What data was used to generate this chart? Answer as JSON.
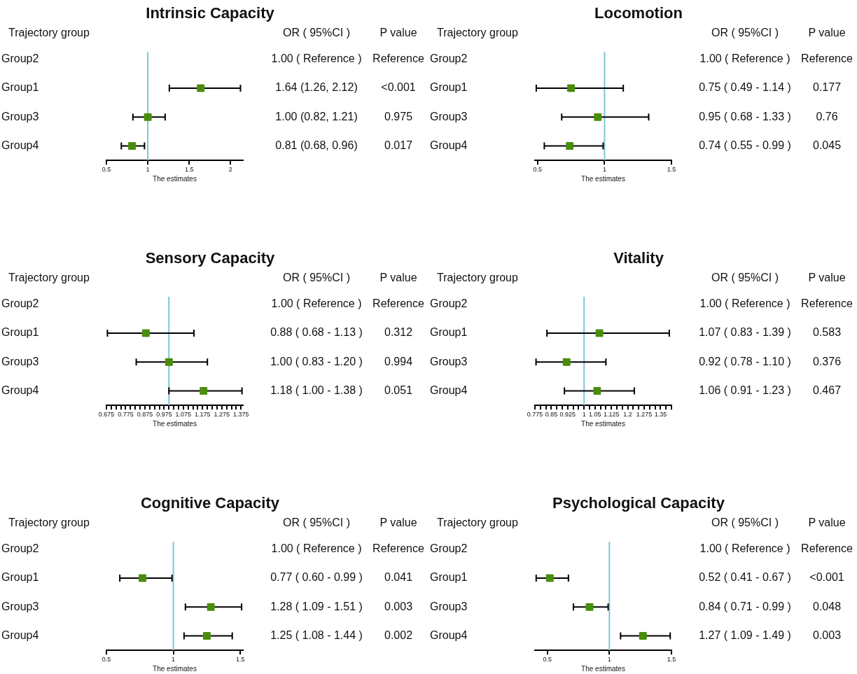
{
  "chart_data": [
    {
      "type": "scatter",
      "orientation": "horizontal",
      "title": "Intrinsic Capacity",
      "ylabel": "Trajectory group",
      "xlabel": "The estimates",
      "categories": [
        "Group2",
        "Group1",
        "Group3",
        "Group4"
      ],
      "values": [
        null,
        1.64,
        1.0,
        0.81
      ],
      "errors": [
        null,
        [
          1.26,
          2.12
        ],
        [
          0.82,
          1.21
        ],
        [
          0.68,
          0.96
        ]
      ],
      "color": "#4a8c0c",
      "marker": "square",
      "value_labels": [
        "1.00 ( Reference )",
        "1.64 (1.26, 2.12)",
        "1.00 (0.82, 1.21)",
        "0.81 (0.68, 0.96)"
      ],
      "annotations": [
        "OR ( 95%CI )",
        "P value",
        "Reference",
        "<0.001",
        "0.975",
        "0.017"
      ],
      "ref_lines": [
        {
          "axis": "x",
          "value": 1,
          "color": "#7cc8d2"
        }
      ],
      "xlim": [
        0.5,
        2.15
      ],
      "xticks": [
        0.5,
        1,
        1.5,
        2
      ]
    },
    {
      "type": "scatter",
      "orientation": "horizontal",
      "title": "Locomotion",
      "ylabel": "Trajectory group",
      "xlabel": "The estimates",
      "categories": [
        "Group2",
        "Group1",
        "Group3",
        "Group4"
      ],
      "values": [
        null,
        0.75,
        0.95,
        0.74
      ],
      "errors": [
        null,
        [
          0.49,
          1.14
        ],
        [
          0.68,
          1.33
        ],
        [
          0.55,
          0.99
        ]
      ],
      "color": "#4a8c0c",
      "marker": "square",
      "value_labels": [
        "1.00 ( Reference )",
        "0.75 ( 0.49 - 1.14 )",
        "0.95 ( 0.68 - 1.33 )",
        "0.74 ( 0.55 - 0.99 )"
      ],
      "annotations": [
        "OR ( 95%CI )",
        "P value",
        "Reference",
        "0.177",
        "0.76",
        "0.045"
      ],
      "ref_lines": [
        {
          "axis": "x",
          "value": 1,
          "color": "#7cc8d2"
        }
      ],
      "xlim": [
        0.48,
        1.5
      ],
      "xticks": [
        0.5,
        1,
        1.5
      ]
    },
    {
      "type": "scatter",
      "orientation": "horizontal",
      "title": "Sensory Capacity",
      "ylabel": "Trajectory group",
      "xlabel": "The estimates",
      "categories": [
        "Group2",
        "Group1",
        "Group3",
        "Group4"
      ],
      "values": [
        null,
        0.88,
        1.0,
        1.18
      ],
      "errors": [
        null,
        [
          0.68,
          1.13
        ],
        [
          0.83,
          1.2
        ],
        [
          1.0,
          1.38
        ]
      ],
      "color": "#4a8c0c",
      "marker": "square",
      "value_labels": [
        "1.00 ( Reference )",
        "0.88 ( 0.68 - 1.13 )",
        "1.00 ( 0.83 - 1.20 )",
        "1.18 ( 1.00 - 1.38 )"
      ],
      "annotations": [
        "OR ( 95%CI )",
        "P value",
        "Reference",
        "0.312",
        "0.994",
        "0.051"
      ],
      "ref_lines": [
        {
          "axis": "x",
          "value": 1,
          "color": "#7cc8d2"
        }
      ],
      "xlim": [
        0.675,
        1.385
      ],
      "xticks": [
        0.675,
        {
          "value": 0.7,
          "label": null
        },
        {
          "value": 0.725,
          "label": null
        },
        {
          "value": 0.75,
          "label": null
        },
        0.775,
        {
          "value": 0.8,
          "label": null
        },
        {
          "value": 0.825,
          "label": null
        },
        {
          "value": 0.85,
          "label": null
        },
        0.875,
        {
          "value": 0.9,
          "label": null
        },
        {
          "value": 0.925,
          "label": null
        },
        {
          "value": 0.95,
          "label": null
        },
        0.975,
        {
          "value": 1,
          "label": null
        },
        {
          "value": 1.025,
          "label": null
        },
        {
          "value": 1.05,
          "label": null
        },
        1.075,
        {
          "value": 1.1,
          "label": null
        },
        {
          "value": 1.125,
          "label": null
        },
        {
          "value": 1.15,
          "label": null
        },
        1.175,
        {
          "value": 1.2,
          "label": null
        },
        {
          "value": 1.225,
          "label": null
        },
        {
          "value": 1.25,
          "label": null
        },
        1.275,
        {
          "value": 1.3,
          "label": null
        },
        {
          "value": 1.325,
          "label": null
        },
        {
          "value": 1.35,
          "label": null
        },
        1.375
      ]
    },
    {
      "type": "scatter",
      "orientation": "horizontal",
      "title": "Vitality",
      "ylabel": "Trajectory group",
      "xlabel": "The estimates",
      "categories": [
        "Group2",
        "Group1",
        "Group3",
        "Group4"
      ],
      "values": [
        null,
        1.07,
        0.92,
        1.06
      ],
      "errors": [
        null,
        [
          0.83,
          1.39
        ],
        [
          0.78,
          1.1
        ],
        [
          0.91,
          1.23
        ]
      ],
      "color": "#4a8c0c",
      "marker": "square",
      "value_labels": [
        "1.00 ( Reference )",
        "1.07 ( 0.83 - 1.39 )",
        "0.92 ( 0.78 - 1.10 )",
        "1.06 ( 0.91 - 1.23 )"
      ],
      "annotations": [
        "OR ( 95%CI )",
        "P value",
        "Reference",
        "0.583",
        "0.376",
        "0.467"
      ],
      "ref_lines": [
        {
          "axis": "x",
          "value": 1,
          "color": "#7cc8d2"
        }
      ],
      "xlim": [
        0.775,
        1.4
      ],
      "xticks": [
        0.775,
        {
          "value": 0.8,
          "label": null
        },
        {
          "value": 0.825,
          "label": null
        },
        0.85,
        {
          "value": 0.875,
          "label": null
        },
        {
          "value": 0.9,
          "label": null
        },
        0.925,
        {
          "value": 0.95,
          "label": null
        },
        {
          "value": 0.975,
          "label": null
        },
        1,
        {
          "value": 1.025,
          "label": null
        },
        1.05,
        {
          "value": 1.075,
          "label": null
        },
        {
          "value": 1.1,
          "label": null
        },
        1.125,
        {
          "value": 1.15,
          "label": null
        },
        {
          "value": 1.175,
          "label": null
        },
        1.2,
        {
          "value": 1.225,
          "label": null
        },
        {
          "value": 1.25,
          "label": null
        },
        1.275,
        {
          "value": 1.3,
          "label": null
        },
        {
          "value": 1.325,
          "label": null
        },
        1.35,
        {
          "value": 1.375,
          "label": null
        },
        {
          "value": 1.4,
          "label": null
        }
      ]
    },
    {
      "type": "scatter",
      "orientation": "horizontal",
      "title": "Cognitive Capacity",
      "ylabel": "Trajectory group",
      "xlabel": "The estimates",
      "categories": [
        "Group2",
        "Group1",
        "Group3",
        "Group4"
      ],
      "values": [
        null,
        0.77,
        1.28,
        1.25
      ],
      "errors": [
        null,
        [
          0.6,
          0.99
        ],
        [
          1.09,
          1.51
        ],
        [
          1.08,
          1.44
        ]
      ],
      "color": "#4a8c0c",
      "marker": "square",
      "value_labels": [
        "1.00 ( Reference )",
        "0.77 ( 0.60 - 0.99 )",
        "1.28 ( 1.09 - 1.51 )",
        "1.25 ( 1.08 - 1.44 )"
      ],
      "annotations": [
        "OR ( 95%CI )",
        "P value",
        "Reference",
        "0.041",
        "0.003",
        "0.002"
      ],
      "ref_lines": [
        {
          "axis": "x",
          "value": 1,
          "color": "#7cc8d2"
        }
      ],
      "xlim": [
        0.5,
        1.52
      ],
      "xticks": [
        0.5,
        1,
        1.5
      ]
    },
    {
      "type": "scatter",
      "orientation": "horizontal",
      "title": "Psychological Capacity",
      "ylabel": "Trajectory group",
      "xlabel": "The estimates",
      "categories": [
        "Group2",
        "Group1",
        "Group3",
        "Group4"
      ],
      "values": [
        null,
        0.52,
        0.84,
        1.27
      ],
      "errors": [
        null,
        [
          0.41,
          0.67
        ],
        [
          0.71,
          0.99
        ],
        [
          1.09,
          1.49
        ]
      ],
      "color": "#4a8c0c",
      "marker": "square",
      "value_labels": [
        "1.00 ( Reference )",
        "0.52 ( 0.41 - 0.67 )",
        "0.84 ( 0.71 - 0.99 )",
        "1.27 ( 1.09 - 1.49 )"
      ],
      "annotations": [
        "OR ( 95%CI )",
        "P value",
        "Reference",
        "<0.001",
        "0.048",
        "0.003"
      ],
      "ref_lines": [
        {
          "axis": "x",
          "value": 1,
          "color": "#7cc8d2"
        }
      ],
      "xlim": [
        0.4,
        1.5
      ],
      "xticks": [
        0.5,
        1,
        1.5
      ]
    }
  ]
}
